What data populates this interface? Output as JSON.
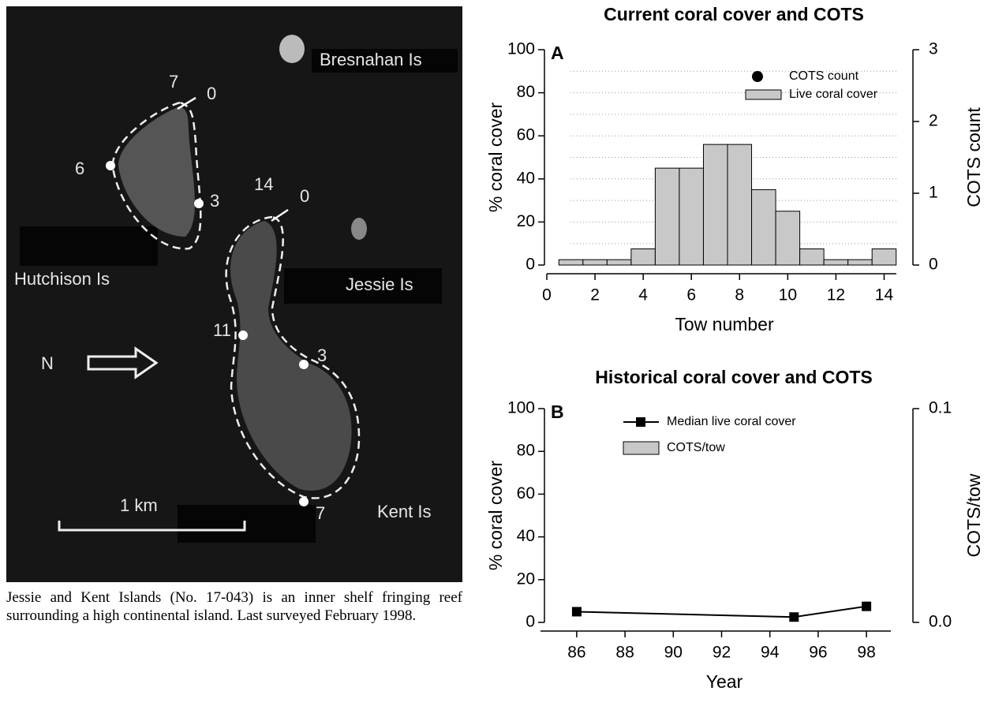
{
  "image": {
    "labels": [
      "Bresnahan Is",
      "Hutchison Is",
      "Jessie Is",
      "Kent Is"
    ],
    "site_numbers": [
      "7",
      "0",
      "6",
      "3",
      "14",
      "0",
      "11",
      "3",
      "7"
    ],
    "north": "N",
    "scale": "1 km"
  },
  "caption": "Jessie and Kent Islands (No. 17-043) is an inner shelf fringing reef surrounding a high continental island. Last surveyed February 1998.",
  "chart_data": [
    {
      "type": "histogram",
      "title": "Current coral cover and COTS",
      "panel": "A",
      "xlabel": "Tow  number",
      "ylabel": "% coral cover",
      "y2label": "COTS count",
      "bins": [
        0.5,
        1.5,
        2.5,
        3.5,
        4.5,
        5.5,
        6.5,
        7.5,
        8.5,
        9.5,
        10.5,
        11.5,
        12.5,
        13.5,
        14.5
      ],
      "series": [
        {
          "name": "COTS count",
          "color": "#000000",
          "axis": "y2",
          "values": [
            null,
            null,
            null,
            null,
            null,
            null,
            null,
            null,
            null,
            null,
            null,
            null,
            null,
            null
          ]
        },
        {
          "name": "Live coral cover",
          "color": "#c8c8c8",
          "values": [
            2.5,
            2.5,
            2.5,
            7.5,
            45,
            45,
            56,
            56,
            35,
            25,
            7.5,
            2.5,
            2.5,
            7.5
          ]
        }
      ],
      "xlim": [
        0,
        15
      ],
      "xticks": [
        0,
        2,
        4,
        6,
        8,
        10,
        12,
        14
      ],
      "ylim": [
        0,
        100
      ],
      "yticks": [
        0,
        20,
        40,
        60,
        80,
        100
      ],
      "grid_lines": [
        10,
        20,
        30,
        40,
        50,
        60,
        70,
        80,
        90
      ],
      "grid": true,
      "y2lim": [
        0,
        3
      ],
      "y2ticks": [
        0,
        1,
        2,
        3
      ]
    },
    {
      "type": "line",
      "title": "Historical coral cover and COTS",
      "panel": "B",
      "xlabel": "Year",
      "ylabel": "% coral cover",
      "y2label": "COTS/tow",
      "x": [
        86,
        95,
        98
      ],
      "series": [
        {
          "name": "Median live coral cover",
          "color": "#000000",
          "values": [
            5,
            2.5,
            7.5
          ]
        },
        {
          "name": "COTS/tow",
          "color": "#c8c8c8",
          "axis": "y2",
          "values": [
            null,
            null,
            null
          ]
        }
      ],
      "xlim": [
        84.5,
        99.5
      ],
      "xticks": [
        86,
        88,
        90,
        92,
        94,
        96,
        98
      ],
      "ylim": [
        0,
        100
      ],
      "yticks": [
        0,
        20,
        40,
        60,
        80,
        100
      ],
      "grid": false,
      "y2lim": [
        0,
        0.1
      ],
      "y2ticks": [
        {
          "value": 0,
          "label": "0.0"
        },
        {
          "value": 0.1,
          "label": "0.1"
        }
      ]
    }
  ]
}
